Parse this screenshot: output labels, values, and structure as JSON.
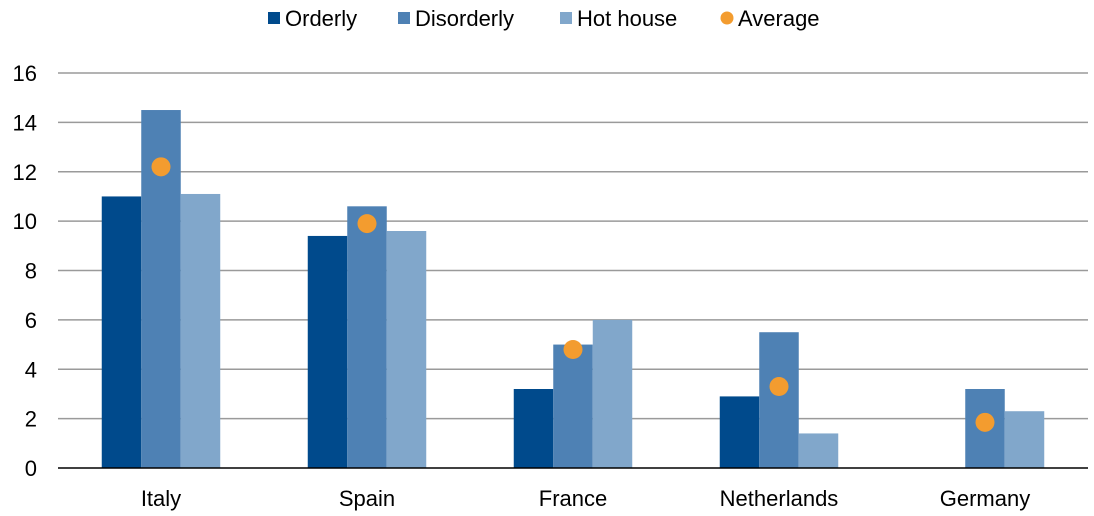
{
  "chart_data": {
    "type": "bar",
    "categories": [
      "Italy",
      "Spain",
      "France",
      "Netherlands",
      "Germany"
    ],
    "series": [
      {
        "name": "Orderly",
        "values": [
          11.0,
          9.4,
          3.2,
          2.9,
          0
        ],
        "color": "#004A8C"
      },
      {
        "name": "Disorderly",
        "values": [
          14.5,
          10.6,
          5.0,
          5.5,
          3.2
        ],
        "color": "#4E81B4"
      },
      {
        "name": "Hot house",
        "values": [
          11.1,
          9.6,
          6.0,
          1.4,
          2.3
        ],
        "color": "#81A7CB"
      },
      {
        "name": "Average",
        "type": "scatter",
        "values": [
          12.2,
          9.9,
          4.8,
          3.3,
          1.85
        ],
        "color": "#F39C2F"
      }
    ],
    "ylim": [
      0,
      16
    ],
    "yticks": [
      0,
      2,
      4,
      6,
      8,
      10,
      12,
      14,
      16
    ],
    "grid": true,
    "legend_position": "top-center",
    "title": "",
    "xlabel": "",
    "ylabel": ""
  }
}
